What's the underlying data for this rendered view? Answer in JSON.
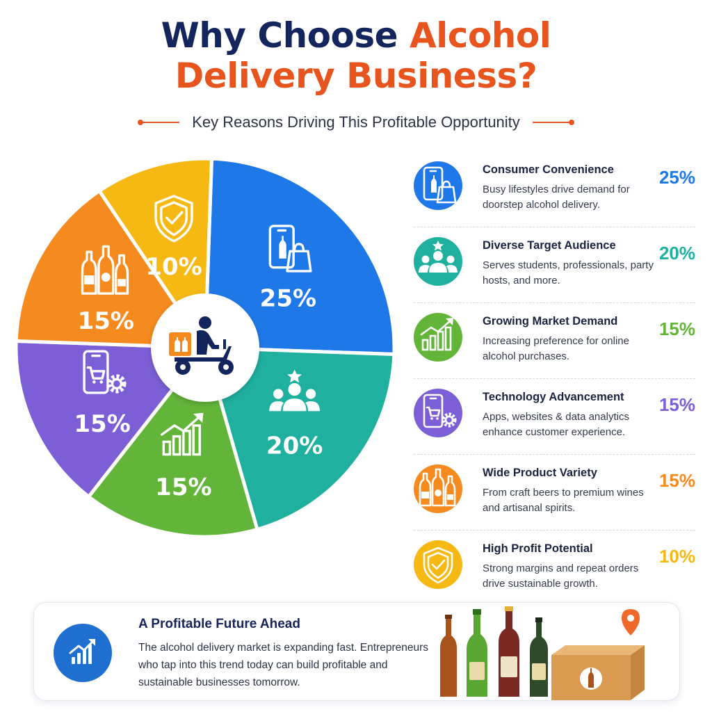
{
  "title": {
    "part1": "Why Choose ",
    "part2": "Alcohol",
    "part3": "Delivery Business?"
  },
  "subtitle": "Key Reasons Driving This Profitable Opportunity",
  "colors": {
    "navy": "#14245c",
    "orange": "#e8541e",
    "blue": "#1f78e8",
    "teal": "#1fb0a0",
    "green": "#63b53a",
    "purple": "#7c5fd6",
    "amber": "#f58a1f",
    "yellow": "#f6b914"
  },
  "chart_data": {
    "type": "pie",
    "unit": "%",
    "slices": [
      {
        "label": "Consumer Convenience",
        "value": 25,
        "display": "25%",
        "color": "#1f78e8",
        "icon": "phone-bag-icon"
      },
      {
        "label": "Diverse Target Audience",
        "value": 20,
        "display": "20%",
        "color": "#1fb0a0",
        "icon": "people-icon"
      },
      {
        "label": "Growing Market Demand",
        "value": 15,
        "display": "15%",
        "color": "#63b53a",
        "icon": "growth-chart-icon"
      },
      {
        "label": "Technology Advancement",
        "value": 15,
        "display": "15%",
        "color": "#7c5fd6",
        "icon": "phone-cart-gear-icon"
      },
      {
        "label": "Wide Product Variety",
        "value": 15,
        "display": "15%",
        "color": "#f58a1f",
        "icon": "bottles-icon"
      },
      {
        "label": "High Profit Potential",
        "value": 10,
        "display": "10%",
        "color": "#f6b914",
        "icon": "shield-check-icon"
      }
    ],
    "center_icon": "delivery-scooter-icon"
  },
  "reasons": [
    {
      "title": "Consumer Convenience",
      "desc": "Busy lifestyles drive demand for doorstep alcohol delivery.",
      "pct": "25%",
      "color": "#1f78e8",
      "icon": "phone-bag-icon"
    },
    {
      "title": "Diverse Target Audience",
      "desc": "Serves students, professionals, party hosts, and more.",
      "pct": "20%",
      "color": "#1fb0a0",
      "icon": "people-icon"
    },
    {
      "title": "Growing Market Demand",
      "desc": "Increasing preference for online alcohol purchases.",
      "pct": "15%",
      "color": "#63b53a",
      "icon": "growth-chart-icon"
    },
    {
      "title": "Technology Advancement",
      "desc": "Apps, websites & data analytics enhance customer experience.",
      "pct": "15%",
      "color": "#7c5fd6",
      "icon": "phone-cart-gear-icon"
    },
    {
      "title": "Wide Product Variety",
      "desc": "From craft beers to premium wines and artisanal spirits.",
      "pct": "15%",
      "color": "#f58a1f",
      "icon": "bottles-icon"
    },
    {
      "title": "High Profit Potential",
      "desc": "Strong margins and repeat orders drive sustainable growth.",
      "pct": "10%",
      "color": "#f6b914",
      "icon": "shield-check-icon"
    }
  ],
  "footer": {
    "title": "A Profitable Future Ahead",
    "text": "The alcohol delivery market is expanding fast. Entrepreneurs who tap into this trend today can build profitable and sustainable businesses tomorrow.",
    "icon": "growth-chart-icon",
    "art": "bottles-box-location-icon"
  }
}
